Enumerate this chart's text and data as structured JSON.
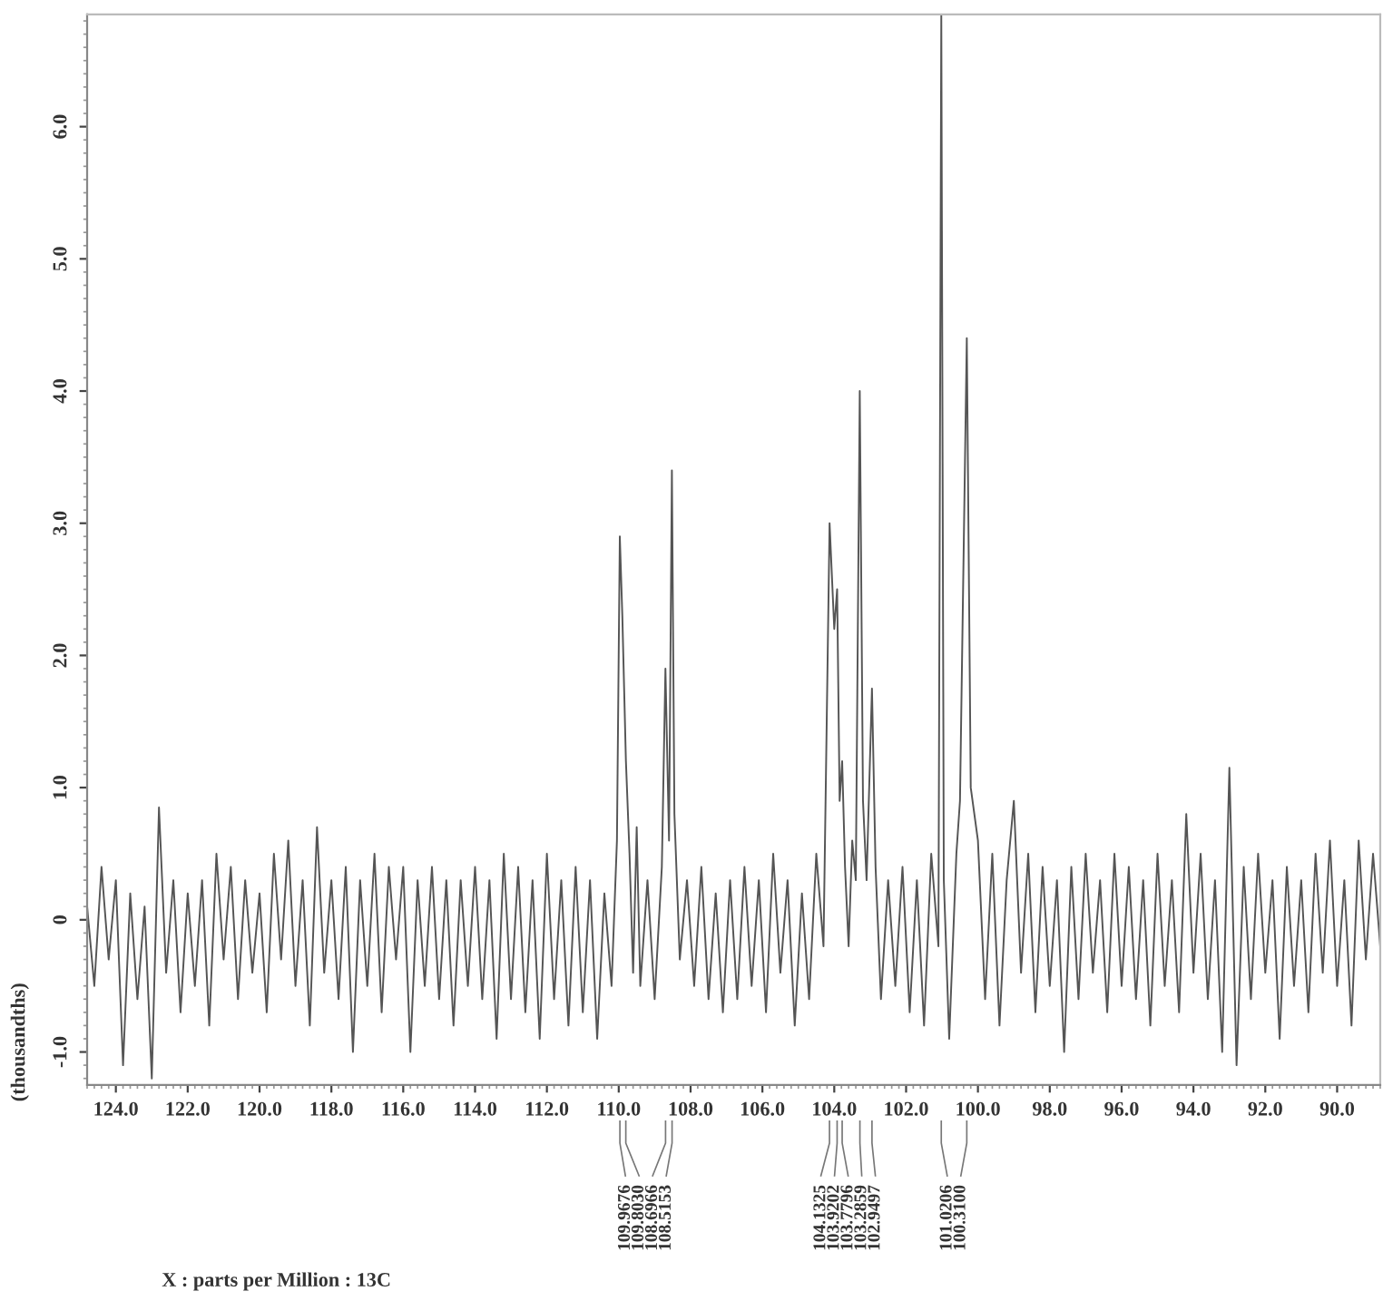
{
  "chart_data": {
    "type": "line",
    "ylabel": "(thousandths)",
    "xlim": [
      124.8,
      88.8
    ],
    "ylim": [
      -1.25,
      6.85
    ],
    "xticks": [
      {
        "value": 124,
        "label": "124.0"
      },
      {
        "value": 122,
        "label": "122.0"
      },
      {
        "value": 120,
        "label": "120.0"
      },
      {
        "value": 118,
        "label": "118.0"
      },
      {
        "value": 116,
        "label": "116.0"
      },
      {
        "value": 114,
        "label": "114.0"
      },
      {
        "value": 112,
        "label": "112.0"
      },
      {
        "value": 110,
        "label": "110.0"
      },
      {
        "value": 108,
        "label": "108.0"
      },
      {
        "value": 106,
        "label": "106.0"
      },
      {
        "value": 104,
        "label": "104.0"
      },
      {
        "value": 102,
        "label": "102.0"
      },
      {
        "value": 100,
        "label": "100.0"
      },
      {
        "value": 98,
        "label": "98.0"
      },
      {
        "value": 96,
        "label": "96.0"
      },
      {
        "value": 94,
        "label": "94.0"
      },
      {
        "value": 92,
        "label": "92.0"
      },
      {
        "value": 90,
        "label": "90.0"
      }
    ],
    "yticks": [
      {
        "value": -1,
        "label": "-1.0"
      },
      0,
      {
        "value": 1,
        "label": "1.0"
      },
      {
        "value": 2,
        "label": "2.0"
      },
      {
        "value": 3,
        "label": "3.0"
      },
      {
        "value": 4,
        "label": "4.0"
      },
      {
        "value": 5,
        "label": "5.0"
      },
      {
        "value": 6,
        "label": "6.0"
      }
    ],
    "grid": false,
    "marker": "none",
    "line_style": "solid",
    "series": [
      {
        "color": "#555555",
        "x": [
          124.8,
          124.6,
          124.4,
          124.2,
          124.0,
          123.8,
          123.6,
          123.4,
          123.2,
          123.0,
          122.8,
          122.6,
          122.4,
          122.2,
          122.0,
          121.8,
          121.6,
          121.4,
          121.2,
          121.0,
          120.8,
          120.6,
          120.4,
          120.2,
          120.0,
          119.8,
          119.6,
          119.4,
          119.2,
          119.0,
          118.8,
          118.6,
          118.4,
          118.2,
          118.0,
          117.8,
          117.6,
          117.4,
          117.2,
          117.0,
          116.8,
          116.6,
          116.4,
          116.2,
          116.0,
          115.8,
          115.6,
          115.4,
          115.2,
          115.0,
          114.8,
          114.6,
          114.4,
          114.2,
          114.0,
          113.8,
          113.6,
          113.4,
          113.2,
          113.0,
          112.8,
          112.6,
          112.4,
          112.2,
          112.0,
          111.8,
          111.6,
          111.4,
          111.2,
          111.0,
          110.8,
          110.6,
          110.4,
          110.2,
          110.05,
          109.97,
          109.9,
          109.8,
          109.7,
          109.6,
          109.5,
          109.4,
          109.2,
          109.0,
          108.8,
          108.7,
          108.6,
          108.52,
          108.45,
          108.3,
          108.1,
          107.9,
          107.7,
          107.5,
          107.3,
          107.1,
          106.9,
          106.7,
          106.5,
          106.3,
          106.1,
          105.9,
          105.7,
          105.5,
          105.3,
          105.1,
          104.9,
          104.7,
          104.5,
          104.3,
          104.13,
          104.0,
          103.92,
          103.85,
          103.78,
          103.7,
          103.6,
          103.5,
          103.4,
          103.29,
          103.2,
          103.1,
          102.95,
          102.85,
          102.7,
          102.5,
          102.3,
          102.1,
          101.9,
          101.7,
          101.5,
          101.3,
          101.1,
          101.02,
          100.95,
          100.8,
          100.6,
          100.5,
          100.31,
          100.2,
          100.0,
          99.8,
          99.6,
          99.4,
          99.2,
          99.0,
          98.8,
          98.6,
          98.4,
          98.2,
          98.0,
          97.8,
          97.6,
          97.4,
          97.2,
          97.0,
          96.8,
          96.6,
          96.4,
          96.2,
          96.0,
          95.8,
          95.6,
          95.4,
          95.2,
          95.0,
          94.8,
          94.6,
          94.4,
          94.2,
          94.0,
          93.8,
          93.6,
          93.4,
          93.2,
          93.0,
          92.8,
          92.6,
          92.4,
          92.2,
          92.0,
          91.8,
          91.6,
          91.4,
          91.2,
          91.0,
          90.8,
          90.6,
          90.4,
          90.2,
          90.0,
          89.8,
          89.6,
          89.4,
          89.2,
          89.0,
          88.8
        ],
        "values": [
          0.1,
          -0.5,
          0.4,
          -0.3,
          0.3,
          -1.1,
          0.2,
          -0.6,
          0.1,
          -1.2,
          0.85,
          -0.4,
          0.3,
          -0.7,
          0.2,
          -0.5,
          0.3,
          -0.8,
          0.5,
          -0.3,
          0.4,
          -0.6,
          0.3,
          -0.4,
          0.2,
          -0.7,
          0.5,
          -0.3,
          0.6,
          -0.5,
          0.3,
          -0.8,
          0.7,
          -0.4,
          0.3,
          -0.6,
          0.4,
          -1.0,
          0.3,
          -0.5,
          0.5,
          -0.7,
          0.4,
          -0.3,
          0.4,
          -1.0,
          0.3,
          -0.5,
          0.4,
          -0.6,
          0.3,
          -0.8,
          0.3,
          -0.5,
          0.4,
          -0.6,
          0.3,
          -0.9,
          0.5,
          -0.6,
          0.4,
          -0.7,
          0.3,
          -0.9,
          0.5,
          -0.6,
          0.3,
          -0.8,
          0.4,
          -0.7,
          0.3,
          -0.9,
          0.2,
          -0.5,
          0.6,
          2.9,
          2.3,
          1.2,
          0.5,
          -0.4,
          0.7,
          -0.5,
          0.3,
          -0.6,
          0.4,
          1.9,
          0.6,
          3.4,
          0.8,
          -0.3,
          0.3,
          -0.5,
          0.4,
          -0.6,
          0.2,
          -0.7,
          0.3,
          -0.6,
          0.4,
          -0.5,
          0.3,
          -0.7,
          0.5,
          -0.4,
          0.3,
          -0.8,
          0.2,
          -0.6,
          0.5,
          -0.2,
          3.0,
          2.2,
          2.5,
          0.9,
          1.2,
          0.4,
          -0.2,
          0.6,
          0.3,
          4.0,
          0.9,
          0.3,
          1.75,
          0.4,
          -0.6,
          0.3,
          -0.5,
          0.4,
          -0.7,
          0.3,
          -0.8,
          0.5,
          -0.2,
          6.85,
          0.3,
          -0.9,
          0.5,
          0.9,
          4.4,
          1.0,
          0.6,
          -0.6,
          0.5,
          -0.8,
          0.3,
          0.9,
          -0.4,
          0.5,
          -0.7,
          0.4,
          -0.5,
          0.3,
          -1.0,
          0.4,
          -0.6,
          0.5,
          -0.4,
          0.3,
          -0.7,
          0.5,
          -0.5,
          0.4,
          -0.6,
          0.3,
          -0.8,
          0.5,
          -0.5,
          0.3,
          -0.7,
          0.8,
          -0.4,
          0.5,
          -0.6,
          0.3,
          -1.0,
          1.15,
          -1.1,
          0.4,
          -0.6,
          0.5,
          -0.4,
          0.3,
          -0.9,
          0.4,
          -0.5,
          0.3,
          -0.7,
          0.5,
          -0.4,
          0.6,
          -0.5,
          0.3,
          -0.8,
          0.6,
          -0.3,
          0.5,
          -0.2
        ]
      }
    ],
    "annotations": [
      {
        "text": "109.9676",
        "x": 109.9676
      },
      {
        "text": "109.8030",
        "x": 109.803
      },
      {
        "text": "108.6966",
        "x": 108.6966
      },
      {
        "text": "108.5153",
        "x": 108.5153
      },
      {
        "text": "104.1325",
        "x": 104.1325
      },
      {
        "text": "103.9202",
        "x": 103.9202
      },
      {
        "text": "103.7796",
        "x": 103.7796
      },
      {
        "text": "103.2859",
        "x": 103.2859
      },
      {
        "text": "102.9497",
        "x": 102.9497
      },
      {
        "text": "101.0206",
        "x": 101.0206
      },
      {
        "text": "100.3100",
        "x": 100.31
      },
      "X : parts per Million : 13C"
    ]
  }
}
